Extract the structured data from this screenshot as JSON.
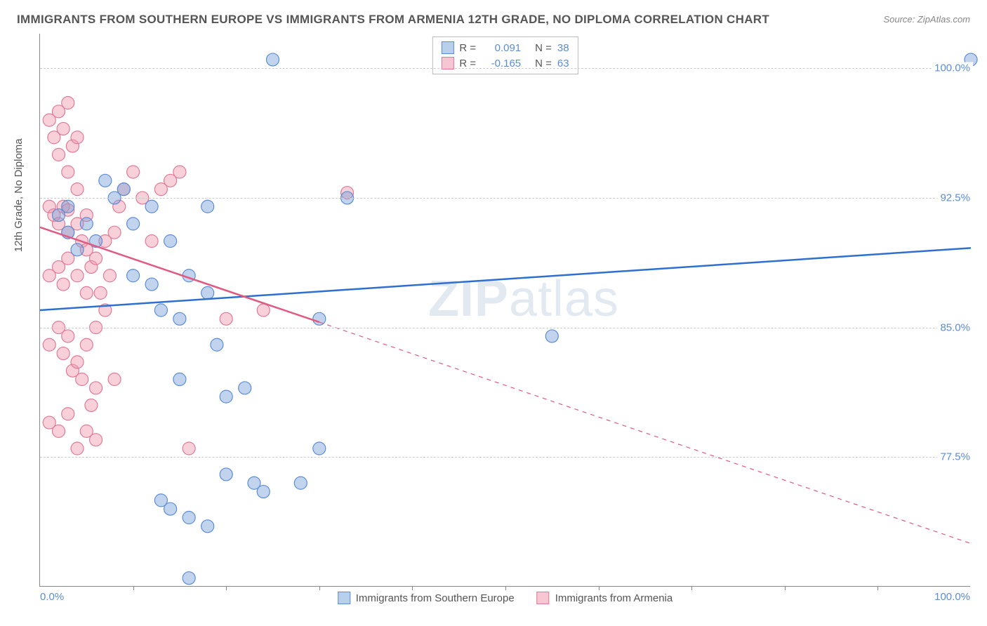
{
  "title": "IMMIGRANTS FROM SOUTHERN EUROPE VS IMMIGRANTS FROM ARMENIA 12TH GRADE, NO DIPLOMA CORRELATION CHART",
  "source": "Source: ZipAtlas.com",
  "ylabel": "12th Grade, No Diploma",
  "watermark_a": "ZIP",
  "watermark_b": "atlas",
  "chart": {
    "type": "scatter",
    "xlim": [
      0,
      100
    ],
    "ylim": [
      70,
      102
    ],
    "yticks": [
      {
        "v": 77.5,
        "label": "77.5%"
      },
      {
        "v": 85.0,
        "label": "85.0%"
      },
      {
        "v": 92.5,
        "label": "92.5%"
      },
      {
        "v": 100.0,
        "label": "100.0%"
      }
    ],
    "xtick_marks": [
      10,
      20,
      30,
      40,
      50,
      60,
      70,
      80,
      90
    ],
    "xtick_start": "0.0%",
    "xtick_end": "100.0%",
    "series": [
      {
        "name": "Immigrants from Southern Europe",
        "color_fill": "rgba(120,160,215,0.45)",
        "color_stroke": "#5b8dd6",
        "swatch_fill": "#b9d0ec",
        "swatch_stroke": "#5b8dd6",
        "r_label": "R =",
        "r_value": "0.091",
        "n_label": "N =",
        "n_value": "38",
        "regression": {
          "x1": 0,
          "y1": 86.0,
          "x2": 100,
          "y2": 89.6,
          "dash": false,
          "width": 2.5,
          "color": "#2f6fd0"
        },
        "marker_r": 9,
        "points": [
          [
            2,
            91.5
          ],
          [
            3,
            92
          ],
          [
            3,
            90.5
          ],
          [
            4,
            89.5
          ],
          [
            5,
            91
          ],
          [
            6,
            90
          ],
          [
            7,
            93.5
          ],
          [
            8,
            92.5
          ],
          [
            9,
            93
          ],
          [
            10,
            91
          ],
          [
            10,
            88
          ],
          [
            12,
            92
          ],
          [
            12,
            87.5
          ],
          [
            13,
            86
          ],
          [
            14,
            90
          ],
          [
            15,
            85.5
          ],
          [
            15,
            82
          ],
          [
            16,
            88
          ],
          [
            18,
            87
          ],
          [
            18,
            92
          ],
          [
            19,
            84
          ],
          [
            20,
            81
          ],
          [
            20,
            76.5
          ],
          [
            13,
            75
          ],
          [
            14,
            74.5
          ],
          [
            16,
            74
          ],
          [
            18,
            73.5
          ],
          [
            22,
            81.5
          ],
          [
            23,
            76
          ],
          [
            24,
            75.5
          ],
          [
            25,
            100.5
          ],
          [
            28,
            76
          ],
          [
            30,
            85.5
          ],
          [
            30,
            78
          ],
          [
            33,
            92.5
          ],
          [
            55,
            84.5
          ],
          [
            100,
            100.5
          ],
          [
            16,
            70.5
          ]
        ]
      },
      {
        "name": "Immigrants from Armenia",
        "color_fill": "rgba(240,150,170,0.45)",
        "color_stroke": "#e27a97",
        "swatch_fill": "#f6c6d3",
        "swatch_stroke": "#e27a97",
        "r_label": "R =",
        "r_value": "-0.165",
        "n_label": "N =",
        "n_value": "63",
        "regression": {
          "x1": 0,
          "y1": 90.8,
          "x2": 100,
          "y2": 72.5,
          "dash_after": 30,
          "width": 2.5,
          "color": "#e05a82"
        },
        "marker_r": 9,
        "points": [
          [
            1,
            97
          ],
          [
            1.5,
            96
          ],
          [
            2,
            97.5
          ],
          [
            2,
            95
          ],
          [
            2.5,
            96.5
          ],
          [
            3,
            98
          ],
          [
            3,
            94
          ],
          [
            3.5,
            95.5
          ],
          [
            4,
            96
          ],
          [
            4,
            93
          ],
          [
            1,
            92
          ],
          [
            1.5,
            91.5
          ],
          [
            2,
            91
          ],
          [
            2.5,
            92
          ],
          [
            3,
            91.8
          ],
          [
            3,
            90.5
          ],
          [
            4,
            91
          ],
          [
            4.5,
            90
          ],
          [
            5,
            91.5
          ],
          [
            5,
            89.5
          ],
          [
            1,
            88
          ],
          [
            2,
            88.5
          ],
          [
            2.5,
            87.5
          ],
          [
            3,
            89
          ],
          [
            4,
            88
          ],
          [
            5,
            87
          ],
          [
            5.5,
            88.5
          ],
          [
            6,
            89
          ],
          [
            6.5,
            87
          ],
          [
            7,
            90
          ],
          [
            1,
            84
          ],
          [
            2,
            85
          ],
          [
            2.5,
            83.5
          ],
          [
            3,
            84.5
          ],
          [
            3.5,
            82.5
          ],
          [
            4,
            83
          ],
          [
            4.5,
            82
          ],
          [
            5,
            84
          ],
          [
            5.5,
            80.5
          ],
          [
            6,
            81.5
          ],
          [
            6,
            85
          ],
          [
            7,
            86
          ],
          [
            7.5,
            88
          ],
          [
            8,
            90.5
          ],
          [
            8.5,
            92
          ],
          [
            9,
            93
          ],
          [
            10,
            94
          ],
          [
            11,
            92.5
          ],
          [
            12,
            90
          ],
          [
            13,
            93
          ],
          [
            1,
            79.5
          ],
          [
            2,
            79
          ],
          [
            3,
            80
          ],
          [
            4,
            78
          ],
          [
            5,
            79
          ],
          [
            6,
            78.5
          ],
          [
            8,
            82
          ],
          [
            14,
            93.5
          ],
          [
            15,
            94
          ],
          [
            16,
            78
          ],
          [
            20,
            85.5
          ],
          [
            24,
            86
          ],
          [
            33,
            92.8
          ]
        ]
      }
    ]
  },
  "legend_bottom": [
    {
      "swatch_fill": "#b9d0ec",
      "swatch_stroke": "#5b8dd6",
      "label": "Immigrants from Southern Europe"
    },
    {
      "swatch_fill": "#f6c6d3",
      "swatch_stroke": "#e27a97",
      "label": "Immigrants from Armenia"
    }
  ]
}
